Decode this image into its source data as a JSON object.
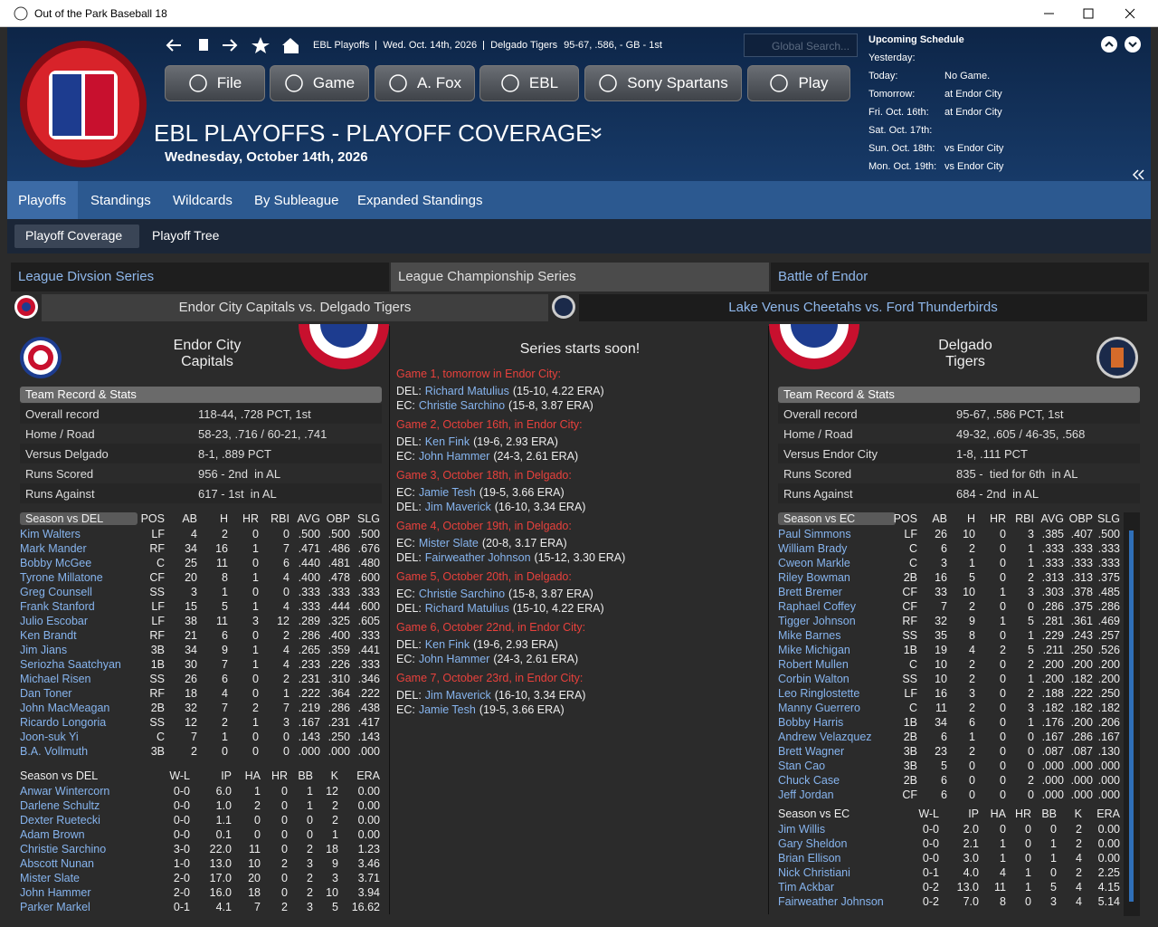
{
  "window": {
    "title": "Out of the Park Baseball 18"
  },
  "header": {
    "breadcrumb": [
      "EBL Playoffs",
      "Wed. Oct. 14th, 2026",
      "Delgado Tigers",
      "95-67, .586, - GB - 1st"
    ],
    "search": "Global Search...",
    "menu": [
      "File",
      "Game",
      "A. Fox",
      "EBL",
      "Sony Spartans",
      "Play"
    ],
    "title": "EBL PLAYOFFS - PLAYOFF COVERAGE",
    "date": "Wednesday, October 14th, 2026"
  },
  "schedule": {
    "title": "Upcoming Schedule",
    "rows": [
      [
        "Yesterday:"
      ],
      [
        "Today:",
        "No Game."
      ],
      [
        "Tomorrow:",
        "at Endor City"
      ],
      [
        "Fri. Oct. 16th:",
        "at Endor City"
      ],
      [
        "Sat. Oct. 17th:"
      ],
      [
        "Sun. Oct. 18th:",
        "vs Endor City"
      ],
      [
        "Mon. Oct. 19th:",
        "vs Endor City"
      ]
    ]
  },
  "tabs": [
    "Playoffs",
    "Standings",
    "Wildcards",
    "By Subleague",
    "Expanded Standings"
  ],
  "subtabs": [
    "Playoff Coverage",
    "Playoff Tree"
  ],
  "series_tabs": [
    "League Divsion Series",
    "League Championship Series",
    "Battle of Endor"
  ],
  "matchups": [
    "Endor City Capitals vs. Delgado Tigers",
    "Lake Venus Cheetahs vs. Ford Thunderbirds"
  ],
  "center": {
    "heading": "Series starts soon!",
    "games": [
      {
        "title": "Game 1, tomorrow in Endor City:",
        "lines": [
          [
            "DEL:",
            "Richard Matulius",
            "(15-10, 4.22 ERA)"
          ],
          [
            "EC:",
            "Christie Sarchino",
            "(15-8, 3.87 ERA)"
          ]
        ]
      },
      {
        "title": "Game 2, October 16th, in Endor City:",
        "lines": [
          [
            "DEL:",
            "Ken Fink",
            "(19-6, 2.93 ERA)"
          ],
          [
            "EC:",
            "John Hammer",
            "(24-3, 2.61 ERA)"
          ]
        ]
      },
      {
        "title": "Game 3, October 18th, in Delgado:",
        "lines": [
          [
            "EC:",
            "Jamie Tesh",
            "(19-5, 3.66 ERA)"
          ],
          [
            "DEL:",
            "Jim Maverick",
            "(16-10, 3.34 ERA)"
          ]
        ]
      },
      {
        "title": "Game 4, October 19th, in Delgado:",
        "lines": [
          [
            "EC:",
            "Mister Slate",
            "(20-8, 3.17 ERA)"
          ],
          [
            "DEL:",
            "Fairweather Johnson",
            "(15-12, 3.30 ERA)"
          ]
        ]
      },
      {
        "title": "Game 5, October 20th, in Delgado:",
        "lines": [
          [
            "EC:",
            "Christie Sarchino",
            "(15-8, 3.87 ERA)"
          ],
          [
            "DEL:",
            "Richard Matulius",
            "(15-10, 4.22 ERA)"
          ]
        ]
      },
      {
        "title": "Game 6, October 22nd, in Endor City:",
        "lines": [
          [
            "DEL:",
            "Ken Fink",
            "(19-6, 2.93 ERA)"
          ],
          [
            "EC:",
            "John Hammer",
            "(24-3, 2.61 ERA)"
          ]
        ]
      },
      {
        "title": "Game 7, October 23rd, in Endor City:",
        "lines": [
          [
            "DEL:",
            "Jim Maverick",
            "(16-10, 3.34 ERA)"
          ],
          [
            "EC:",
            "Jamie Tesh",
            "(19-5, 3.66 ERA)"
          ]
        ]
      }
    ]
  },
  "left": {
    "team": [
      "Endor City",
      "Capitals"
    ],
    "section": "Team Record & Stats",
    "record": [
      [
        "Overall record",
        "118-44, .728 PCT, 1st"
      ],
      [
        "Home / Road",
        "58-23, .716 / 60-21, .741"
      ],
      [
        "Versus Delgado",
        "8-1, .889 PCT"
      ],
      [
        "Runs Scored",
        "956 - 2nd  in AL"
      ],
      [
        "Runs Against",
        "617 - 1st  in AL"
      ]
    ],
    "batting": {
      "header": [
        "Season vs DEL",
        "POS",
        "AB",
        "H",
        "HR",
        "RBI",
        "AVG",
        "OBP",
        "SLG"
      ],
      "rows": [
        [
          "Kim Walters",
          "LF",
          "4",
          "2",
          "0",
          "0",
          ".500",
          ".500",
          ".500"
        ],
        [
          "Mark Mander",
          "RF",
          "34",
          "16",
          "1",
          "7",
          ".471",
          ".486",
          ".676"
        ],
        [
          "Bobby McGee",
          "C",
          "25",
          "11",
          "0",
          "6",
          ".440",
          ".481",
          ".480"
        ],
        [
          "Tyrone Millatone",
          "CF",
          "20",
          "8",
          "1",
          "4",
          ".400",
          ".478",
          ".600"
        ],
        [
          "Greg Counsell",
          "SS",
          "3",
          "1",
          "0",
          "0",
          ".333",
          ".333",
          ".333"
        ],
        [
          "Frank Stanford",
          "LF",
          "15",
          "5",
          "1",
          "4",
          ".333",
          ".444",
          ".600"
        ],
        [
          "Julio Escobar",
          "LF",
          "38",
          "11",
          "3",
          "12",
          ".289",
          ".325",
          ".605"
        ],
        [
          "Ken Brandt",
          "RF",
          "21",
          "6",
          "0",
          "2",
          ".286",
          ".400",
          ".333"
        ],
        [
          "Jim Jians",
          "3B",
          "34",
          "9",
          "1",
          "4",
          ".265",
          ".359",
          ".441"
        ],
        [
          "Seriozha Saatchyan",
          "1B",
          "30",
          "7",
          "1",
          "4",
          ".233",
          ".226",
          ".333"
        ],
        [
          "Michael Risen",
          "SS",
          "26",
          "6",
          "0",
          "2",
          ".231",
          ".310",
          ".346"
        ],
        [
          "Dan Toner",
          "RF",
          "18",
          "4",
          "0",
          "1",
          ".222",
          ".364",
          ".222"
        ],
        [
          "John MacMeagan",
          "2B",
          "32",
          "7",
          "2",
          "7",
          ".219",
          ".286",
          ".438"
        ],
        [
          "Ricardo Longoria",
          "SS",
          "12",
          "2",
          "1",
          "3",
          ".167",
          ".231",
          ".417"
        ],
        [
          "Joon-suk Yi",
          "C",
          "7",
          "1",
          "0",
          "0",
          ".143",
          ".250",
          ".143"
        ],
        [
          "B.A. Vollmuth",
          "3B",
          "2",
          "0",
          "0",
          "0",
          ".000",
          ".000",
          ".000"
        ]
      ]
    },
    "pitching": {
      "header": [
        "Season vs DEL",
        "W-L",
        "IP",
        "HA",
        "HR",
        "BB",
        "K",
        "ERA"
      ],
      "rows": [
        [
          "Anwar Wintercorn",
          "0-0",
          "6.0",
          "1",
          "0",
          "1",
          "12",
          "0.00"
        ],
        [
          "Darlene Schultz",
          "0-0",
          "1.0",
          "2",
          "0",
          "1",
          "2",
          "0.00"
        ],
        [
          "Dexter Ruetecki",
          "0-0",
          "1.1",
          "0",
          "0",
          "0",
          "2",
          "0.00"
        ],
        [
          "Adam Brown",
          "0-0",
          "0.1",
          "0",
          "0",
          "0",
          "1",
          "0.00"
        ],
        [
          "Christie Sarchino",
          "3-0",
          "22.0",
          "11",
          "0",
          "2",
          "18",
          "1.23"
        ],
        [
          "Abscott Nunan",
          "1-0",
          "13.0",
          "10",
          "2",
          "3",
          "9",
          "3.46"
        ],
        [
          "Mister Slate",
          "2-0",
          "17.0",
          "20",
          "0",
          "2",
          "3",
          "3.71"
        ],
        [
          "John Hammer",
          "2-0",
          "16.0",
          "18",
          "0",
          "2",
          "10",
          "3.94"
        ],
        [
          "Parker Markel",
          "0-1",
          "4.1",
          "7",
          "2",
          "3",
          "5",
          "16.62"
        ]
      ]
    }
  },
  "right": {
    "team": [
      "Delgado",
      "Tigers"
    ],
    "section": "Team Record & Stats",
    "record": [
      [
        "Overall record",
        "95-67, .586 PCT, 1st"
      ],
      [
        "Home / Road",
        "49-32, .605 / 46-35, .568"
      ],
      [
        "Versus Endor City",
        "1-8, .111 PCT"
      ],
      [
        "Runs Scored",
        "835 -  tied for 6th  in AL"
      ],
      [
        "Runs Against",
        "684 - 2nd  in AL"
      ]
    ],
    "batting": {
      "header": [
        "Season vs EC",
        "POS",
        "AB",
        "H",
        "HR",
        "RBI",
        "AVG",
        "OBP",
        "SLG"
      ],
      "rows": [
        [
          "Paul Simmons",
          "LF",
          "26",
          "10",
          "0",
          "3",
          ".385",
          ".407",
          ".500"
        ],
        [
          "William Brady",
          "C",
          "6",
          "2",
          "0",
          "1",
          ".333",
          ".333",
          ".333"
        ],
        [
          "Cweon Markle",
          "C",
          "3",
          "1",
          "0",
          "1",
          ".333",
          ".333",
          ".333"
        ],
        [
          "Riley Bowman",
          "2B",
          "16",
          "5",
          "0",
          "2",
          ".313",
          ".313",
          ".375"
        ],
        [
          "Brett Bremer",
          "CF",
          "33",
          "10",
          "1",
          "3",
          ".303",
          ".378",
          ".485"
        ],
        [
          "Raphael Coffey",
          "CF",
          "7",
          "2",
          "0",
          "0",
          ".286",
          ".375",
          ".286"
        ],
        [
          "Tigger Johnson",
          "RF",
          "32",
          "9",
          "1",
          "5",
          ".281",
          ".361",
          ".469"
        ],
        [
          "Mike Barnes",
          "SS",
          "35",
          "8",
          "0",
          "1",
          ".229",
          ".243",
          ".257"
        ],
        [
          "Mike Michigan",
          "1B",
          "19",
          "4",
          "2",
          "5",
          ".211",
          ".250",
          ".526"
        ],
        [
          "Robert Mullen",
          "C",
          "10",
          "2",
          "0",
          "2",
          ".200",
          ".200",
          ".200"
        ],
        [
          "Corbin Walton",
          "SS",
          "10",
          "2",
          "0",
          "1",
          ".200",
          ".182",
          ".200"
        ],
        [
          "Leo Ringlostette",
          "LF",
          "16",
          "3",
          "0",
          "2",
          ".188",
          ".222",
          ".250"
        ],
        [
          "Manny Guerrero",
          "C",
          "11",
          "2",
          "0",
          "3",
          ".182",
          ".182",
          ".182"
        ],
        [
          "Bobby Harris",
          "1B",
          "34",
          "6",
          "0",
          "1",
          ".176",
          ".200",
          ".206"
        ],
        [
          "Andrew Velazquez",
          "2B",
          "6",
          "1",
          "0",
          "0",
          ".167",
          ".286",
          ".167"
        ],
        [
          "Brett Wagner",
          "3B",
          "23",
          "2",
          "0",
          "0",
          ".087",
          ".087",
          ".130"
        ],
        [
          "Stan Cao",
          "3B",
          "5",
          "0",
          "0",
          "0",
          ".000",
          ".000",
          ".000"
        ],
        [
          "Chuck Case",
          "2B",
          "6",
          "0",
          "0",
          "2",
          ".000",
          ".000",
          ".000"
        ],
        [
          "Jeff Jordan",
          "CF",
          "6",
          "0",
          "0",
          "0",
          ".000",
          ".000",
          ".000"
        ]
      ]
    },
    "pitching": {
      "header": [
        "Season vs EC",
        "W-L",
        "IP",
        "HA",
        "HR",
        "BB",
        "K",
        "ERA"
      ],
      "rows": [
        [
          "Jim Willis",
          "0-0",
          "2.0",
          "0",
          "0",
          "0",
          "2",
          "0.00"
        ],
        [
          "Gary Sheldon",
          "0-0",
          "2.1",
          "1",
          "0",
          "1",
          "2",
          "0.00"
        ],
        [
          "Brian Ellison",
          "0-0",
          "3.0",
          "1",
          "0",
          "1",
          "4",
          "0.00"
        ],
        [
          "Nick Christiani",
          "0-1",
          "4.0",
          "4",
          "1",
          "0",
          "2",
          "2.25"
        ],
        [
          "Tim Ackbar",
          "0-2",
          "13.0",
          "11",
          "1",
          "5",
          "4",
          "4.15"
        ],
        [
          "Fairweather Johnson",
          "0-2",
          "7.0",
          "8",
          "0",
          "3",
          "4",
          "5.14"
        ]
      ]
    }
  }
}
